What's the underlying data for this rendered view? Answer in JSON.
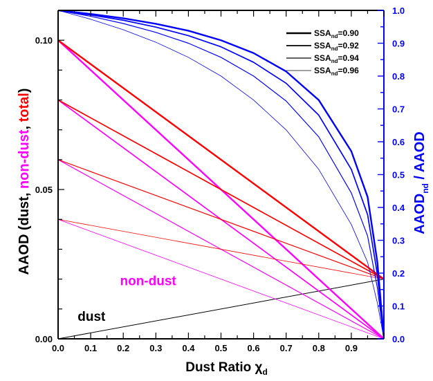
{
  "chart_data": {
    "type": "line",
    "xlabel_main": "Dust Ratio χ",
    "xlabel_sub": "d",
    "ylabel_left_parts": [
      {
        "text": "AAOD (dust, ",
        "color": "#000000"
      },
      {
        "text": "non-dust",
        "color": "#ff00ff"
      },
      {
        "text": ", ",
        "color": "#000000"
      },
      {
        "text": "total",
        "color": "#ff0000"
      },
      {
        "text": ")",
        "color": "#000000"
      }
    ],
    "ylabel_right_main": "AAOD",
    "ylabel_right_sub": "nd",
    "ylabel_right_tail": " / AAOD",
    "xlim": [
      0,
      1
    ],
    "ylim_left": [
      0,
      0.11
    ],
    "ylim_right": [
      0,
      1
    ],
    "x_ticks": [
      0.0,
      0.1,
      0.2,
      0.3,
      0.4,
      0.5,
      0.6,
      0.7,
      0.8,
      0.9
    ],
    "x_tick_labels": [
      "0.0",
      "0.1",
      "0.2",
      "0.3",
      "0.4",
      "0.5",
      "0.6",
      "0.7",
      "0.8",
      "0.9"
    ],
    "y_left_ticks": [
      0,
      0.05,
      0.1
    ],
    "y_left_tick_labels": [
      "0.00",
      "0.05",
      "0.10"
    ],
    "y_right_ticks": [
      0,
      0.1,
      0.2,
      0.3,
      0.4,
      0.5,
      0.6,
      0.7,
      0.8,
      0.9,
      1.0
    ],
    "y_right_tick_labels": [
      "0.0",
      "0.1",
      "0.2",
      "0.3",
      "0.4",
      "0.5",
      "0.6",
      "0.7",
      "0.8",
      "0.9",
      "1.0"
    ],
    "legend": {
      "placement": "top-right",
      "entries": [
        {
          "main": "SSA",
          "sub": "nd",
          "tail": "=0.90",
          "width": 2.4
        },
        {
          "main": "SSA",
          "sub": "nd",
          "tail": "=0.92",
          "width": 1.7
        },
        {
          "main": "SSA",
          "sub": "nd",
          "tail": "=0.94",
          "width": 1.2
        },
        {
          "main": "SSA",
          "sub": "nd",
          "tail": "=0.96",
          "width": 0.8
        }
      ]
    },
    "annotations": [
      {
        "text": "non-dust",
        "color": "#ff00ff",
        "x": 0.19,
        "y": 0.018
      },
      {
        "text": "dust",
        "color": "#000000",
        "x": 0.06,
        "y": 0.006
      }
    ],
    "series": [
      {
        "kind": "dust",
        "axis": "left",
        "color": "#000000",
        "width": 1.0,
        "x": [
          0,
          1
        ],
        "y": [
          0,
          0.02
        ]
      },
      {
        "kind": "non-dust",
        "ssa": "0.90",
        "axis": "left",
        "color": "#ff00ff",
        "width": 2.4,
        "x": [
          0,
          1
        ],
        "y": [
          0.1,
          0
        ]
      },
      {
        "kind": "non-dust",
        "ssa": "0.92",
        "axis": "left",
        "color": "#ff00ff",
        "width": 1.7,
        "x": [
          0,
          1
        ],
        "y": [
          0.08,
          0
        ]
      },
      {
        "kind": "non-dust",
        "ssa": "0.94",
        "axis": "left",
        "color": "#ff00ff",
        "width": 1.2,
        "x": [
          0,
          1
        ],
        "y": [
          0.06,
          0
        ]
      },
      {
        "kind": "non-dust",
        "ssa": "0.96",
        "axis": "left",
        "color": "#ff00ff",
        "width": 0.8,
        "x": [
          0,
          1
        ],
        "y": [
          0.04,
          0
        ]
      },
      {
        "kind": "total",
        "ssa": "0.90",
        "axis": "left",
        "color": "#ff0000",
        "width": 2.4,
        "x": [
          0,
          1
        ],
        "y": [
          0.1,
          0.02
        ]
      },
      {
        "kind": "total",
        "ssa": "0.92",
        "axis": "left",
        "color": "#ff0000",
        "width": 1.7,
        "x": [
          0,
          1
        ],
        "y": [
          0.08,
          0.02
        ]
      },
      {
        "kind": "total",
        "ssa": "0.94",
        "axis": "left",
        "color": "#ff0000",
        "width": 1.2,
        "x": [
          0,
          1
        ],
        "y": [
          0.06,
          0.02
        ]
      },
      {
        "kind": "total",
        "ssa": "0.96",
        "axis": "left",
        "color": "#ff0000",
        "width": 0.8,
        "x": [
          0,
          1
        ],
        "y": [
          0.04,
          0.02
        ]
      },
      {
        "kind": "ratio",
        "ssa": "0.90",
        "axis": "right",
        "color": "#0000ff",
        "width": 2.4,
        "x": [
          0,
          0.1,
          0.2,
          0.3,
          0.4,
          0.5,
          0.6,
          0.7,
          0.8,
          0.9,
          0.95,
          0.98,
          1.0
        ],
        "y": [
          1.0,
          0.989,
          0.976,
          0.959,
          0.938,
          0.909,
          0.87,
          0.814,
          0.727,
          0.571,
          0.432,
          0.233,
          0.0
        ]
      },
      {
        "kind": "ratio",
        "ssa": "0.92",
        "axis": "right",
        "color": "#0000ff",
        "width": 1.7,
        "x": [
          0,
          0.1,
          0.2,
          0.3,
          0.4,
          0.5,
          0.6,
          0.7,
          0.8,
          0.9,
          0.95,
          0.98,
          1.0
        ],
        "y": [
          1.0,
          0.986,
          0.97,
          0.949,
          0.923,
          0.889,
          0.842,
          0.778,
          0.681,
          0.516,
          0.378,
          0.196,
          0.0
        ]
      },
      {
        "kind": "ratio",
        "ssa": "0.94",
        "axis": "right",
        "color": "#0000ff",
        "width": 1.2,
        "x": [
          0,
          0.1,
          0.2,
          0.3,
          0.4,
          0.5,
          0.6,
          0.7,
          0.8,
          0.9,
          0.95,
          0.98,
          1.0
        ],
        "y": [
          1.0,
          0.982,
          0.96,
          0.933,
          0.9,
          0.857,
          0.8,
          0.724,
          0.615,
          0.444,
          0.313,
          0.155,
          0.0
        ]
      },
      {
        "kind": "ratio",
        "ssa": "0.96",
        "axis": "right",
        "color": "#0000ff",
        "width": 0.8,
        "x": [
          0,
          0.1,
          0.2,
          0.3,
          0.4,
          0.5,
          0.6,
          0.7,
          0.8,
          0.9,
          0.95,
          0.98,
          1.0
        ],
        "y": [
          1.0,
          0.973,
          0.941,
          0.903,
          0.857,
          0.8,
          0.727,
          0.636,
          0.516,
          0.348,
          0.233,
          0.109,
          0.0
        ]
      }
    ]
  }
}
